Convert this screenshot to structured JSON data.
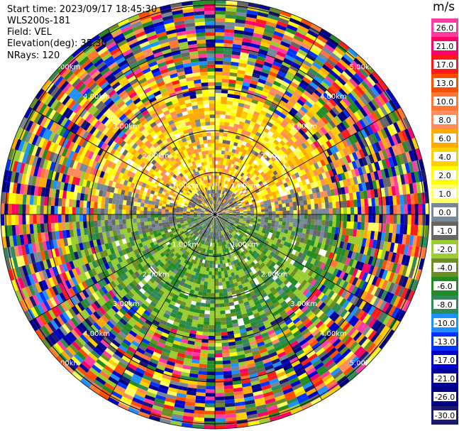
{
  "header": {
    "start_time": "Start time: 2023/09/17 18:45:30",
    "device": "WLS200s-181",
    "field": "Field: VEL",
    "elevation": "Elevation(deg): 35.30",
    "nrays": "NRays: 120"
  },
  "chart_data": {
    "type": "ppi",
    "nrays": 120,
    "range_rings_km": [
      "1.00km",
      "2.00km",
      "3.00km",
      "4.00km",
      "5.00km"
    ],
    "colorbar": {
      "unit": "m/s",
      "ticks": [
        "26.0",
        "21.0",
        "17.0",
        "13.0",
        "10.0",
        "8.0",
        "6.0",
        "4.0",
        "2.0",
        "1.0",
        "0.0",
        "-1.0",
        "-2.0",
        "-4.0",
        "-6.0",
        "-8.0",
        "-10.0",
        "-13.0",
        "-17.0",
        "-21.0",
        "-26.0",
        "-30.0"
      ],
      "colors": [
        "#ff3aa0",
        "#ff0066",
        "#ff1a1a",
        "#ff4d00",
        "#ff7733",
        "#ff8c5a",
        "#ffaa00",
        "#ffd000",
        "#ffff00",
        "#ffff66",
        "#778899",
        "#666666",
        "#9acd32",
        "#6b8e23",
        "#228b22",
        "#2e8b57",
        "#1e90ff",
        "#0033ff",
        "#0000cc",
        "#000099",
        "#000080",
        "#191970"
      ]
    },
    "regions": {
      "north": "positive velocity (yellow/orange)",
      "south": "negative velocity (green)"
    }
  }
}
